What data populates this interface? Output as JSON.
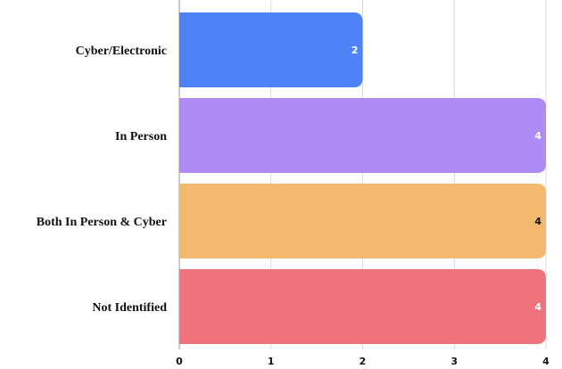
{
  "chart_data": {
    "type": "bar",
    "orientation": "horizontal",
    "categories": [
      "Cyber/Electronic",
      "In Person",
      "Both In Person & Cyber",
      "Not Identified"
    ],
    "values": [
      2,
      4,
      4,
      4
    ],
    "colors": [
      "#4f82f7",
      "#af8bf5",
      "#f3b96f",
      "#ef737d"
    ],
    "label_colors": [
      "#ffffff",
      "#ffffff",
      "#111111",
      "#ffffff"
    ],
    "xlim": [
      0,
      4
    ],
    "xticks": [
      0,
      1,
      2,
      3,
      4
    ],
    "grid": true,
    "title": "",
    "xlabel": "",
    "ylabel": ""
  }
}
